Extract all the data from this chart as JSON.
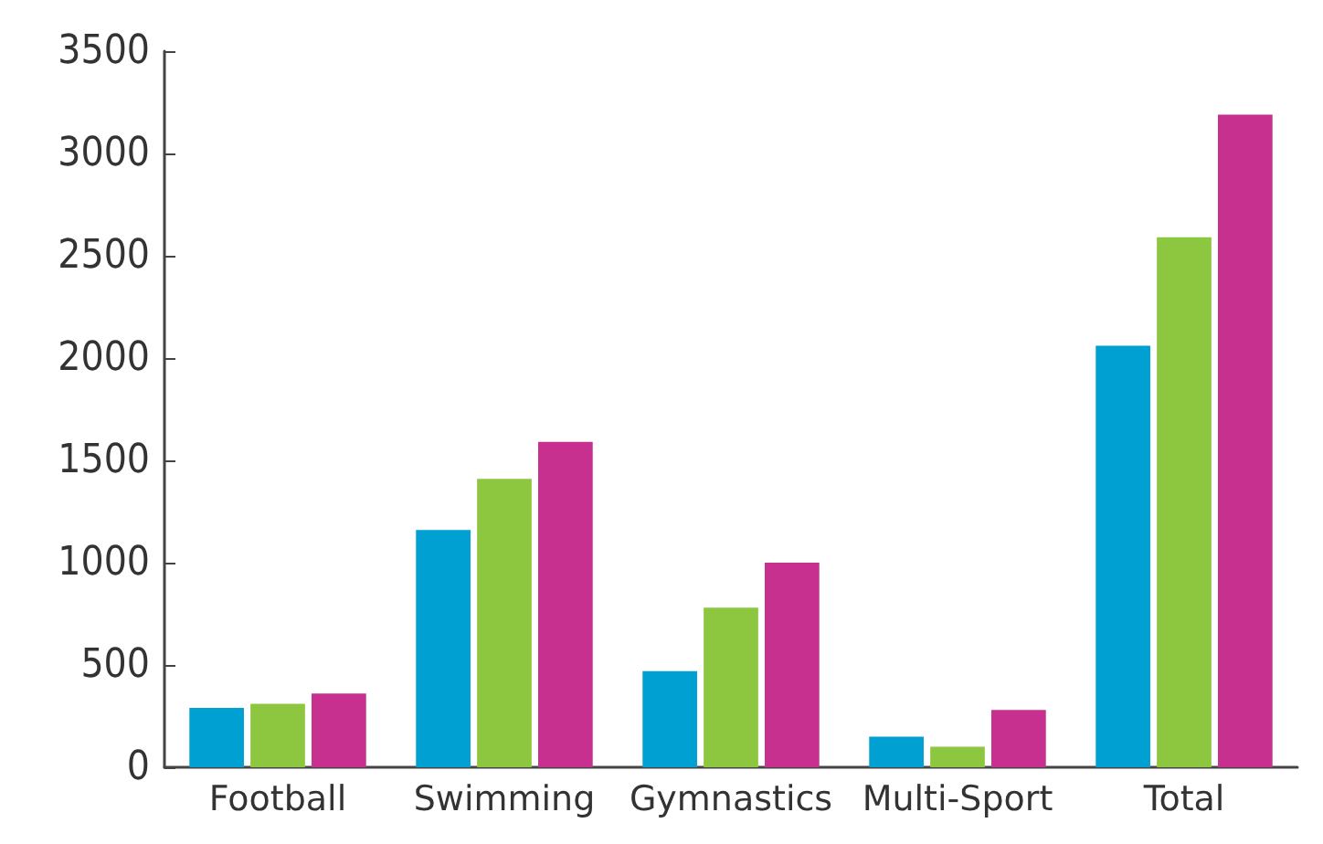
{
  "chart_data": {
    "type": "bar",
    "categories": [
      "Football",
      "Swimming",
      "Gymnastics",
      "Multi-Sport",
      "Total"
    ],
    "series": [
      {
        "color": "#00a0d2",
        "values": [
          290,
          1160,
          470,
          150,
          2060
        ]
      },
      {
        "color": "#8dc63f",
        "values": [
          310,
          1410,
          780,
          100,
          2590
        ]
      },
      {
        "color": "#c8308f",
        "values": [
          360,
          1590,
          1000,
          280,
          3190
        ]
      }
    ],
    "ylim": [
      0,
      3500
    ],
    "yticks": [
      0,
      500,
      1000,
      1500,
      2000,
      2500,
      3000,
      3500
    ],
    "grid": false
  }
}
